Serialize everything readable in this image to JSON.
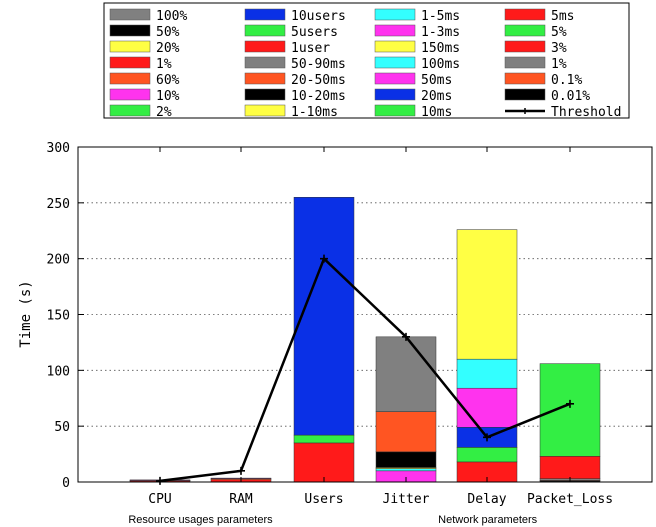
{
  "chart_data": {
    "type": "bar",
    "stacked": true,
    "ylabel": "Time (s)",
    "ylim": [
      0,
      300
    ],
    "yticks": [
      0,
      50,
      100,
      150,
      200,
      250,
      300
    ],
    "grid": "horizontal dotted",
    "legend_position": "top",
    "categories": [
      "CPU",
      "RAM",
      "Users",
      "Jitter",
      "Delay",
      "Packet_Loss"
    ],
    "group_labels": [
      {
        "label": "Resource usages parameters",
        "categories": [
          "CPU",
          "RAM"
        ]
      },
      {
        "label": "Network parameters",
        "categories": [
          "Jitter",
          "Delay",
          "Packet_Loss"
        ]
      }
    ],
    "legend": [
      {
        "name": "100%",
        "color": "#808080"
      },
      {
        "name": "10users",
        "color": "#0a30e6"
      },
      {
        "name": "1-5ms",
        "color": "#33ffff"
      },
      {
        "name": "5ms",
        "color": "#ff1a1a"
      },
      {
        "name": "50%",
        "color": "#000000"
      },
      {
        "name": "5users",
        "color": "#33ee44"
      },
      {
        "name": "1-3ms",
        "color": "#ff33ee"
      },
      {
        "name": "5%",
        "color": "#33ee44"
      },
      {
        "name": "20%",
        "color": "#ffff44"
      },
      {
        "name": "1user",
        "color": "#ff1a1a"
      },
      {
        "name": "150ms",
        "color": "#ffff44"
      },
      {
        "name": "3%",
        "color": "#ff1a1a"
      },
      {
        "name": "1%",
        "color": "#ff1a1a"
      },
      {
        "name": "50-90ms",
        "color": "#808080"
      },
      {
        "name": "100ms",
        "color": "#33ffff"
      },
      {
        "name": "1%",
        "color": "#808080"
      },
      {
        "name": "60%",
        "color": "#ff5522"
      },
      {
        "name": "20-50ms",
        "color": "#ff5522"
      },
      {
        "name": "50ms",
        "color": "#ff33ee"
      },
      {
        "name": "0.1%",
        "color": "#ff5522"
      },
      {
        "name": "10%",
        "color": "#ff33ee"
      },
      {
        "name": "10-20ms",
        "color": "#000000"
      },
      {
        "name": "20ms",
        "color": "#0a30e6"
      },
      {
        "name": "0.01%",
        "color": "#000000"
      },
      {
        "name": "2%",
        "color": "#33ee44"
      },
      {
        "name": "1-10ms",
        "color": "#ffff44"
      },
      {
        "name": "10ms",
        "color": "#33ee44"
      },
      {
        "name": "Threshold",
        "color": "#000000",
        "kind": "line"
      }
    ],
    "bars": [
      {
        "category": "CPU",
        "segments": [
          {
            "name": "1%",
            "value": 1.0,
            "color": "#ff1a1a"
          },
          {
            "name": "60%",
            "value": 0.6,
            "color": "#ff5522"
          },
          {
            "name": "10%",
            "value": 0.3,
            "color": "#ff33ee"
          }
        ]
      },
      {
        "category": "RAM",
        "segments": [
          {
            "name": "1%",
            "value": 2.0,
            "color": "#ff1a1a"
          },
          {
            "name": "60%",
            "value": 1.0,
            "color": "#ff5522"
          },
          {
            "name": "10%",
            "value": 0.5,
            "color": "#ff33ee"
          }
        ]
      },
      {
        "category": "Users",
        "segments": [
          {
            "name": "1user",
            "value": 35,
            "color": "#ff1a1a"
          },
          {
            "name": "5users",
            "value": 7,
            "color": "#33ee44"
          },
          {
            "name": "10users",
            "value": 213,
            "color": "#0a30e6"
          }
        ]
      },
      {
        "category": "Jitter",
        "segments": [
          {
            "name": "1-3ms",
            "value": 10,
            "color": "#ff33ee"
          },
          {
            "name": "1-5ms",
            "value": 2,
            "color": "#33ffff"
          },
          {
            "name": "1-10ms",
            "value": 1,
            "color": "#ffff44"
          },
          {
            "name": "10-20ms",
            "value": 14,
            "color": "#000000"
          },
          {
            "name": "20-50ms",
            "value": 36,
            "color": "#ff5522"
          },
          {
            "name": "50-90ms",
            "value": 67,
            "color": "#808080"
          }
        ]
      },
      {
        "category": "Delay",
        "segments": [
          {
            "name": "5ms",
            "value": 18,
            "color": "#ff1a1a"
          },
          {
            "name": "10ms",
            "value": 13,
            "color": "#33ee44"
          },
          {
            "name": "20ms",
            "value": 18,
            "color": "#0a30e6"
          },
          {
            "name": "50ms",
            "value": 35,
            "color": "#ff33ee"
          },
          {
            "name": "100ms",
            "value": 26,
            "color": "#33ffff"
          },
          {
            "name": "150ms",
            "value": 116,
            "color": "#ffff44"
          }
        ]
      },
      {
        "category": "Packet_Loss",
        "segments": [
          {
            "name": "0.01%",
            "value": 1,
            "color": "#000000"
          },
          {
            "name": "0.1%",
            "value": 0.5,
            "color": "#ff5522"
          },
          {
            "name": "1%",
            "value": 1.5,
            "color": "#808080"
          },
          {
            "name": "3%",
            "value": 20,
            "color": "#ff1a1a"
          },
          {
            "name": "5%",
            "value": 83,
            "color": "#33ee44"
          }
        ]
      }
    ],
    "threshold": {
      "name": "Threshold",
      "values": [
        1,
        10,
        200,
        130,
        40,
        70
      ]
    }
  }
}
